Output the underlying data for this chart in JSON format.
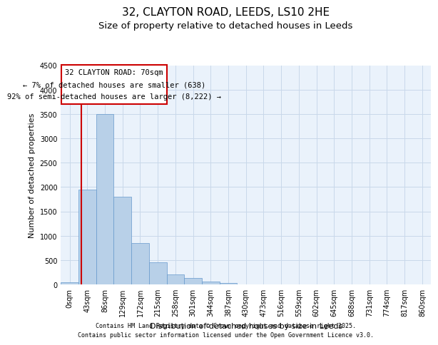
{
  "title_line1": "32, CLAYTON ROAD, LEEDS, LS10 2HE",
  "title_line2": "Size of property relative to detached houses in Leeds",
  "xlabel": "Distribution of detached houses by size in Leeds",
  "ylabel": "Number of detached properties",
  "footer_line1": "Contains HM Land Registry data © Crown copyright and database right 2025.",
  "footer_line2": "Contains public sector information licensed under the Open Government Licence v3.0.",
  "annotation_line1": "32 CLAYTON ROAD: 70sqm",
  "annotation_line2": "← 7% of detached houses are smaller (638)",
  "annotation_line3": "92% of semi-detached houses are larger (8,222) →",
  "bar_labels": [
    "0sqm",
    "43sqm",
    "86sqm",
    "129sqm",
    "172sqm",
    "215sqm",
    "258sqm",
    "301sqm",
    "344sqm",
    "387sqm",
    "430sqm",
    "473sqm",
    "516sqm",
    "559sqm",
    "602sqm",
    "645sqm",
    "688sqm",
    "731sqm",
    "774sqm",
    "817sqm",
    "860sqm"
  ],
  "bar_values": [
    50,
    1950,
    3500,
    1800,
    850,
    450,
    200,
    130,
    60,
    30,
    0,
    0,
    0,
    0,
    0,
    0,
    0,
    0,
    0,
    0,
    0
  ],
  "bar_color": "#b8d0e8",
  "bar_edge_color": "#6699cc",
  "grid_color": "#c8d8ea",
  "background_color": "#eaf2fb",
  "red_line_color": "#cc0000",
  "red_line_x": 0.65,
  "ylim": [
    0,
    4500
  ],
  "yticks": [
    0,
    500,
    1000,
    1500,
    2000,
    2500,
    3000,
    3500,
    4000,
    4500
  ],
  "annotation_box_facecolor": "#ffffff",
  "annotation_box_edgecolor": "#cc0000",
  "title_fontsize": 11,
  "subtitle_fontsize": 9.5,
  "axis_label_fontsize": 8,
  "tick_fontsize": 7,
  "annotation_fontsize": 7.5,
  "footer_fontsize": 6
}
